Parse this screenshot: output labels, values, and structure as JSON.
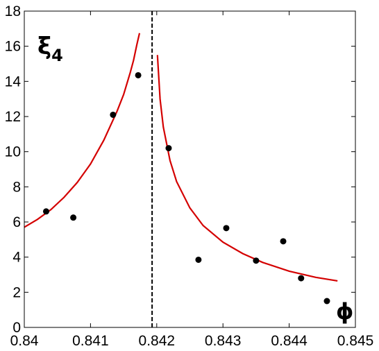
{
  "chart_data": {
    "type": "scatter",
    "title": "",
    "xlabel": "ϕ",
    "ylabel_main": "ξ",
    "ylabel_sub": "4",
    "xlim": [
      0.84,
      0.845
    ],
    "ylim": [
      0,
      18
    ],
    "x_ticks": [
      "0.84",
      "0.841",
      "0.842",
      "0.843",
      "0.844",
      "0.845"
    ],
    "y_ticks": [
      "0",
      "2",
      "4",
      "6",
      "8",
      "10",
      "12",
      "14",
      "16",
      "18"
    ],
    "grid": false,
    "critical_line_x": 0.84193,
    "colors": {
      "points": "#000000",
      "fit": "#d40000",
      "critical_line": "#000000",
      "axes": "#000000"
    },
    "series": [
      {
        "kind": "points",
        "x": [
          0.84033,
          0.84074,
          0.84134,
          0.84172,
          0.84218,
          0.84263,
          0.84305,
          0.8435,
          0.84391,
          0.84418,
          0.84457
        ],
        "y": [
          6.6,
          6.25,
          12.1,
          14.35,
          10.2,
          3.85,
          5.65,
          3.8,
          4.9,
          2.8,
          1.5
        ]
      },
      {
        "kind": "fit-left",
        "x": [
          0.84,
          0.8402,
          0.8404,
          0.8406,
          0.8408,
          0.841,
          0.8412,
          0.8414,
          0.8415,
          0.8416,
          0.84165,
          0.8417,
          0.84174
        ],
        "y": [
          5.7,
          6.15,
          6.7,
          7.4,
          8.25,
          9.3,
          10.65,
          12.3,
          13.25,
          14.5,
          15.2,
          16.1,
          16.75
        ]
      },
      {
        "kind": "fit-right",
        "x": [
          0.84201,
          0.84205,
          0.8421,
          0.8422,
          0.8423,
          0.8425,
          0.8427,
          0.843,
          0.8433,
          0.8436,
          0.844,
          0.8444,
          0.84473
        ],
        "y": [
          15.5,
          13.0,
          11.4,
          9.5,
          8.3,
          6.8,
          5.8,
          4.85,
          4.2,
          3.7,
          3.2,
          2.85,
          2.65
        ]
      }
    ]
  }
}
